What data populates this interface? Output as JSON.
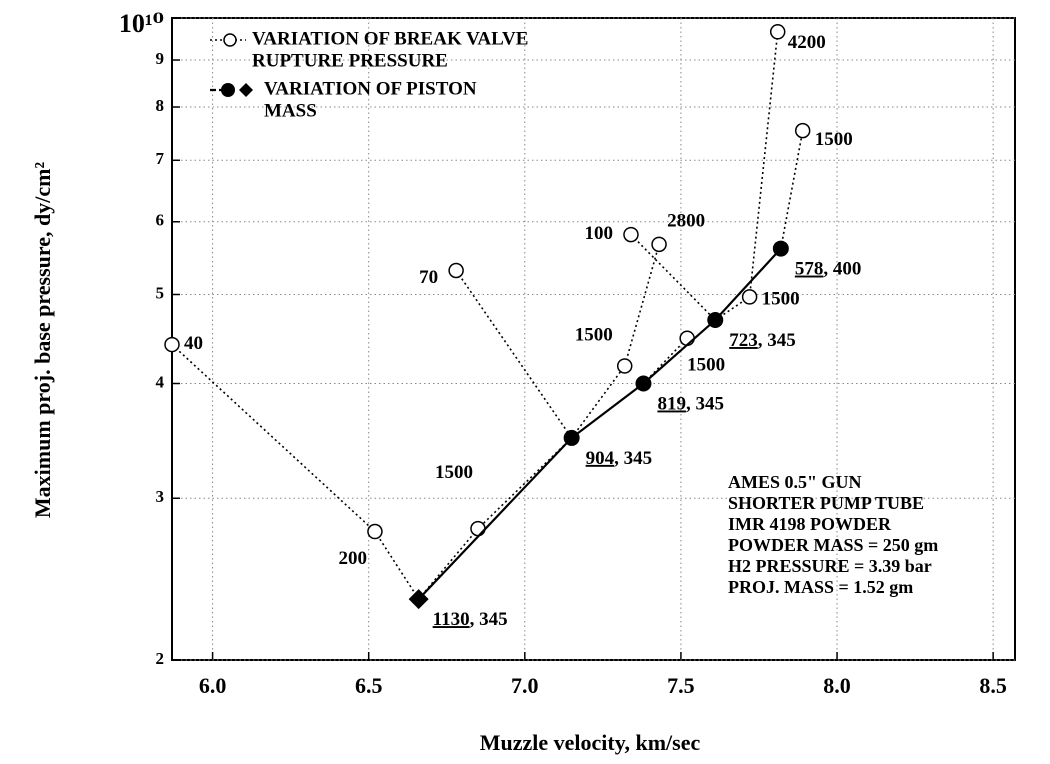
{
  "chart_data": {
    "type": "line",
    "x_label": "Muzzle velocity, km/sec",
    "y_label": "Maximum proj. base pressure, dy/cm²",
    "xlim": [
      5.87,
      8.57
    ],
    "xticks": [
      {
        "value": 6.0,
        "label": "6.0"
      },
      6.5,
      {
        "value": 7.0,
        "label": "7.0"
      },
      7.5,
      {
        "value": 8.0,
        "label": "8.0"
      },
      8.5
    ],
    "ylim": [
      2000000000,
      10000000000
    ],
    "log_y": true,
    "yticks": [
      {
        "value": 2000000000,
        "label": "2"
      },
      {
        "value": 3000000000,
        "label": "3"
      },
      {
        "value": 4000000000,
        "label": "4"
      },
      {
        "value": 5000000000,
        "label": "5"
      },
      {
        "value": 6000000000,
        "label": "6"
      },
      {
        "value": 7000000000,
        "label": "7"
      },
      {
        "value": 8000000000,
        "label": "8"
      },
      {
        "value": 9000000000,
        "label": "9"
      },
      {
        "value": 10000000000,
        "label": "10¹⁰"
      }
    ],
    "grid": true,
    "series": [
      {
        "name": [
          "VARIATION OF PISTON",
          "MASS"
        ],
        "color": "#000",
        "style": "solid",
        "x": [
          6.66,
          7.15,
          7.38,
          7.61,
          7.82
        ],
        "y": [
          2330000000,
          3490000000,
          4000000000,
          4690000000,
          5610000000
        ],
        "markers": [
          "diamond",
          "circle",
          "circle",
          "circle",
          "circle"
        ],
        "labels": [
          [
            "1130",
            ", 345"
          ],
          [
            "904",
            ", 345"
          ],
          [
            "819",
            ", 345"
          ],
          [
            "723",
            ", 345"
          ],
          [
            "578",
            ", 400"
          ]
        ]
      },
      {
        "name": [
          "VARIATION OF BREAK VALVE",
          "RUPTURE PRESSURE"
        ],
        "color": "#000",
        "style": "dotted",
        "groups": [
          {
            "x": [
              5.87,
              6.52,
              6.66
            ],
            "y": [
              4410000000,
              2760000000,
              2330000000
            ],
            "labels": [
              "40",
              "200",
              null
            ]
          },
          {
            "x": [
              6.66,
              6.85,
              7.15
            ],
            "y": [
              2330000000,
              2780000000,
              3490000000
            ],
            "labels": [
              null,
              "1500",
              null
            ]
          },
          {
            "x": [
              6.78,
              7.15
            ],
            "y": [
              5310000000,
              3490000000
            ],
            "labels": [
              "70",
              null
            ]
          },
          {
            "x": [
              7.15,
              7.32,
              7.43
            ],
            "y": [
              3490000000,
              4180000000,
              5670000000
            ],
            "labels": [
              null,
              "1500",
              "2800"
            ]
          },
          {
            "x": [
              7.34,
              7.61
            ],
            "y": [
              5810000000,
              4690000000
            ],
            "labels": [
              "100",
              null
            ]
          },
          {
            "x": [
              7.38,
              7.52
            ],
            "y": [
              4000000000,
              4480000000
            ],
            "labels": [
              null,
              "1500"
            ]
          },
          {
            "x": [
              7.61,
              7.72,
              7.81
            ],
            "y": [
              4690000000,
              4970000000,
              9660000000
            ],
            "labels": [
              null,
              "1500",
              "4200"
            ]
          },
          {
            "x": [
              7.82,
              7.89
            ],
            "y": [
              5610000000,
              7540000000
            ],
            "labels": [
              null,
              "1500"
            ]
          }
        ]
      }
    ],
    "annotation": [
      "AMES 0.5\" GUN",
      "SHORTER PUMP TUBE",
      "IMR 4198 POWDER",
      "POWDER MASS = 250 gm",
      "H2 PRESSURE = 3.39 bar",
      "PROJ. MASS = 1.52 gm"
    ]
  }
}
